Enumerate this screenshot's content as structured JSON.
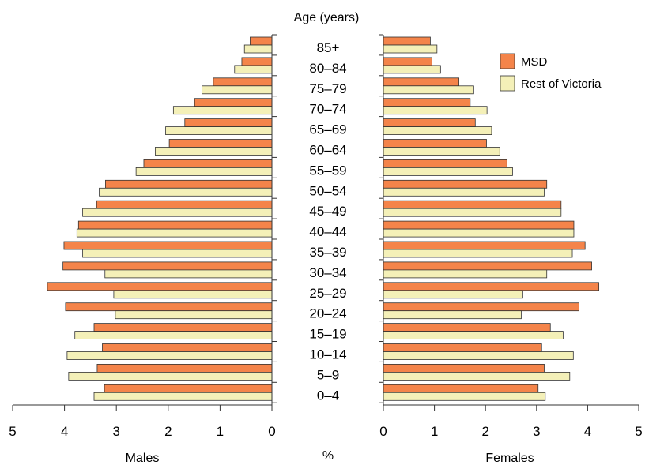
{
  "chart_data": {
    "type": "bar",
    "orientation": "horizontal-population-pyramid",
    "age_axis_title": "Age (years)",
    "categories": [
      "85+",
      "80–84",
      "75–79",
      "70–74",
      "65–69",
      "60–64",
      "55–59",
      "50–54",
      "45–49",
      "40–44",
      "35–39",
      "30–34",
      "25–29",
      "20–24",
      "15–19",
      "10–14",
      "5–9",
      "0–4"
    ],
    "males": {
      "label": "Males",
      "xlim": [
        5,
        0
      ],
      "series": [
        {
          "name": "MSD",
          "color": "#f4844a",
          "values": [
            0.42,
            0.58,
            1.13,
            1.49,
            1.68,
            1.98,
            2.47,
            3.21,
            3.38,
            3.73,
            4.01,
            4.03,
            4.33,
            3.98,
            3.43,
            3.27,
            3.37,
            3.23
          ]
        },
        {
          "name": "Rest of Victoria",
          "color": "#f4f0b8",
          "values": [
            0.53,
            0.72,
            1.35,
            1.9,
            2.05,
            2.25,
            2.62,
            3.33,
            3.65,
            3.76,
            3.65,
            3.22,
            3.05,
            3.02,
            3.8,
            3.95,
            3.92,
            3.43
          ]
        }
      ]
    },
    "females": {
      "label": "Females",
      "xlim": [
        0,
        5
      ],
      "series": [
        {
          "name": "MSD",
          "color": "#f4844a",
          "values": [
            0.92,
            0.95,
            1.48,
            1.7,
            1.8,
            2.02,
            2.42,
            3.2,
            3.48,
            3.73,
            3.95,
            4.08,
            4.22,
            3.83,
            3.27,
            3.1,
            3.15,
            3.03
          ]
        },
        {
          "name": "Rest of Victoria",
          "color": "#f4f0b8",
          "values": [
            1.05,
            1.12,
            1.77,
            2.03,
            2.12,
            2.28,
            2.53,
            3.15,
            3.48,
            3.73,
            3.7,
            3.2,
            2.73,
            2.7,
            3.52,
            3.72,
            3.65,
            3.17
          ]
        }
      ]
    },
    "x_ticks": [
      0,
      1,
      2,
      3,
      4,
      5
    ],
    "x_unit_label": "%",
    "legend": {
      "placement": "top-right",
      "entries": [
        "MSD",
        "Rest of Victoria"
      ]
    },
    "grid": false
  }
}
